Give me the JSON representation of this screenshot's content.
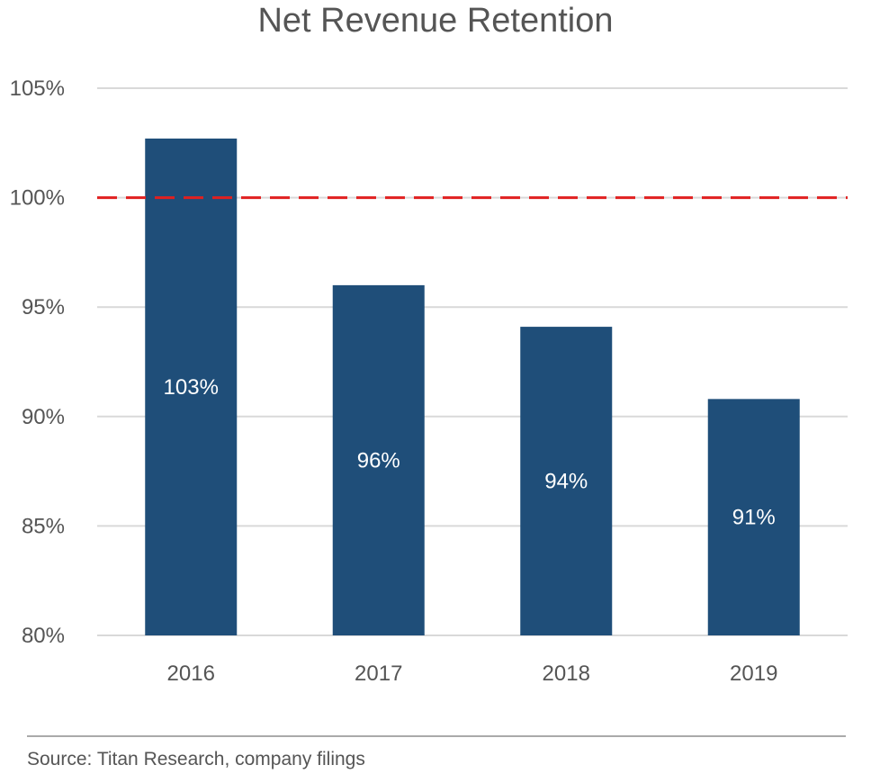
{
  "chart_data": {
    "type": "bar",
    "title": "Net Revenue Retention",
    "categories": [
      "2016",
      "2017",
      "2018",
      "2019"
    ],
    "values": [
      102.7,
      96.0,
      94.1,
      90.8
    ],
    "data_labels": [
      "103%",
      "96%",
      "94%",
      "91%"
    ],
    "ylim": [
      80,
      105
    ],
    "yticks": [
      80,
      85,
      90,
      95,
      100,
      105
    ],
    "ytick_labels": [
      "80%",
      "85%",
      "90%",
      "95%",
      "100%",
      "105%"
    ],
    "reference_line": {
      "value": 100,
      "style": "dashed"
    },
    "grid": true,
    "xlabel": "",
    "ylabel": ""
  },
  "colors": {
    "bar": "#1f4e79",
    "grid": "#d9d9d9",
    "reference_line": "#e02020",
    "text": "#555555",
    "data_label": "#ffffff"
  },
  "footer": {
    "source": "Source: Titan Research, company filings"
  }
}
